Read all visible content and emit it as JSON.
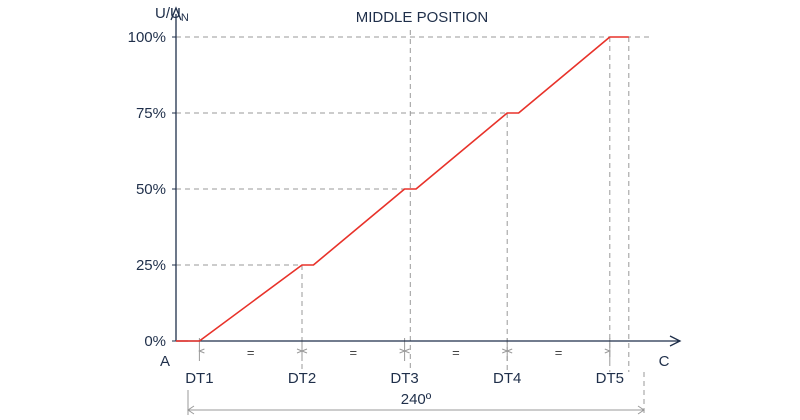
{
  "chart_data": {
    "type": "line",
    "title": "MIDDLE POSITION",
    "ylabel": "U/UN",
    "yticks": [
      "0%",
      "25%",
      "50%",
      "75%",
      "100%"
    ],
    "ylim": [
      0,
      100
    ],
    "xlim": [
      0,
      240
    ],
    "x_start_label": "A",
    "x_end_label": "C",
    "span_label": "240º",
    "segment_mark": "=",
    "dt_labels": [
      {
        "label": "DT1",
        "x": 6
      },
      {
        "label": "DT2",
        "x": 60
      },
      {
        "label": "DT3",
        "x": 114
      },
      {
        "label": "DT4",
        "x": 168
      },
      {
        "label": "DT5",
        "x": 222
      }
    ],
    "series": [
      {
        "color": "#e8322a",
        "points": [
          [
            0,
            0
          ],
          [
            6,
            0
          ],
          [
            60,
            25
          ],
          [
            66,
            25
          ],
          [
            114,
            50
          ],
          [
            120,
            50
          ],
          [
            168,
            75
          ],
          [
            174,
            75
          ],
          [
            222,
            100
          ],
          [
            232,
            100
          ]
        ]
      }
    ],
    "colors": {
      "axis": "#1f2f4a",
      "dashed": "#9a9a9a",
      "line": "#e8322a"
    }
  }
}
